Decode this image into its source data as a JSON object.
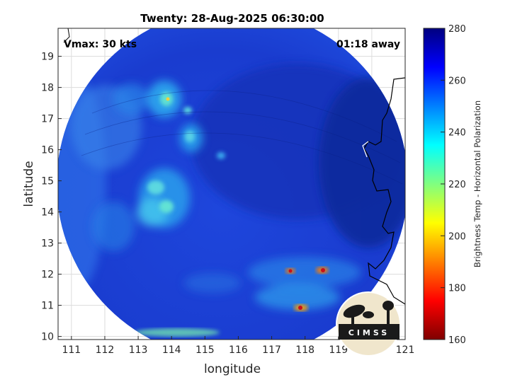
{
  "title": "Twenty: 28-Aug-2025 06:30:00",
  "vmax_label": "Vmax: 30 kts",
  "time_away_label": "01:18 away",
  "xlabel": "longitude",
  "ylabel": "latitude",
  "colorbar_label": "Brightness Temp - Horizontal Polarization",
  "logo_text": "CIMSS",
  "map": {
    "xlim": [
      110.6,
      121
    ],
    "ylim": [
      9.9,
      19.9
    ],
    "xticks": [
      "111",
      "112",
      "113",
      "114",
      "115",
      "116",
      "117",
      "118",
      "119",
      "120",
      "121"
    ],
    "yticks": [
      "10",
      "11",
      "12",
      "13",
      "14",
      "15",
      "16",
      "17",
      "18",
      "19"
    ]
  },
  "colorbar": {
    "range": [
      160,
      280
    ],
    "ticks": [
      "160",
      "180",
      "200",
      "220",
      "240",
      "260",
      "280"
    ]
  },
  "colors": {
    "scan_base": "#1a3fd8",
    "warm_region": "#0d2ea8",
    "convective_cyan": "#39c7f0",
    "hot_spot_red": "#c8101a",
    "coastline": "#000000"
  }
}
